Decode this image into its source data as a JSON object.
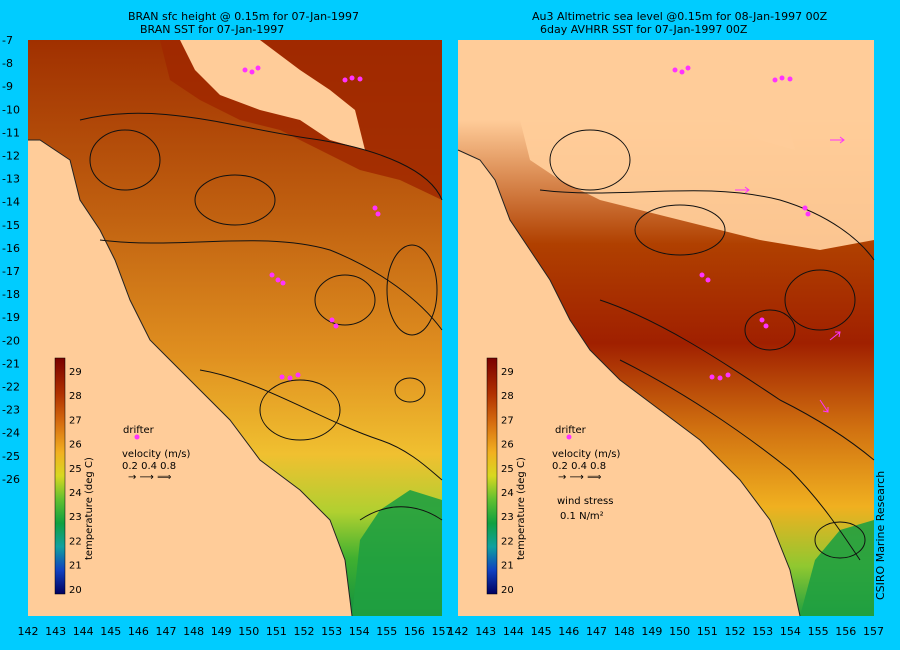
{
  "panels": [
    {
      "title_line1": "BRAN sfc height @ 0.15m for 07-Jan-1997",
      "title_line2": "BRAN SST for 07-Jan-1997",
      "velocity_scale_values": "0.2 0.4 0.8",
      "wind_label": "",
      "wind_units": ""
    },
    {
      "title_line1": "Au3 Altimetric sea level  @0.15m  for 08-Jan-1997 00Z",
      "title_line2": "6day AVHRR SST for 07-Jan-1997 00Z",
      "velocity_scale_values": "0.2 0.4 0.8",
      "wind_label": "wind stress",
      "wind_units": "0.1 N/m²"
    }
  ],
  "axes": {
    "y_ticks": [
      "-7",
      "-8",
      "-9",
      "-10",
      "-11",
      "-12",
      "-13",
      "-14",
      "-15",
      "-16",
      "-17",
      "-18",
      "-19",
      "-20",
      "-21",
      "-22",
      "-23",
      "-24",
      "-25",
      "-26"
    ],
    "x_ticks_left": [
      "142",
      "143",
      "144",
      "145",
      "146",
      "147",
      "148",
      "149",
      "150",
      "151",
      "152",
      "153",
      "154",
      "155",
      "156",
      "157"
    ],
    "x_ticks_right": [
      "142",
      "143",
      "144",
      "145",
      "146",
      "147",
      "148",
      "149",
      "150",
      "151",
      "152",
      "153",
      "154",
      "155",
      "156",
      "157"
    ]
  },
  "colorbar": {
    "label": "temperature (deg C)",
    "ticks": [
      "29",
      "28",
      "27",
      "26",
      "25",
      "24",
      "23",
      "22",
      "21",
      "20"
    ]
  },
  "legend": {
    "drifter_label": "drifter",
    "velocity_label": "velocity (m/s)"
  },
  "credit": "CSIRO Marine Research",
  "colors": {
    "background": "#00ccff",
    "land": "#ffcc99",
    "drifter": "#ff33ff"
  }
}
